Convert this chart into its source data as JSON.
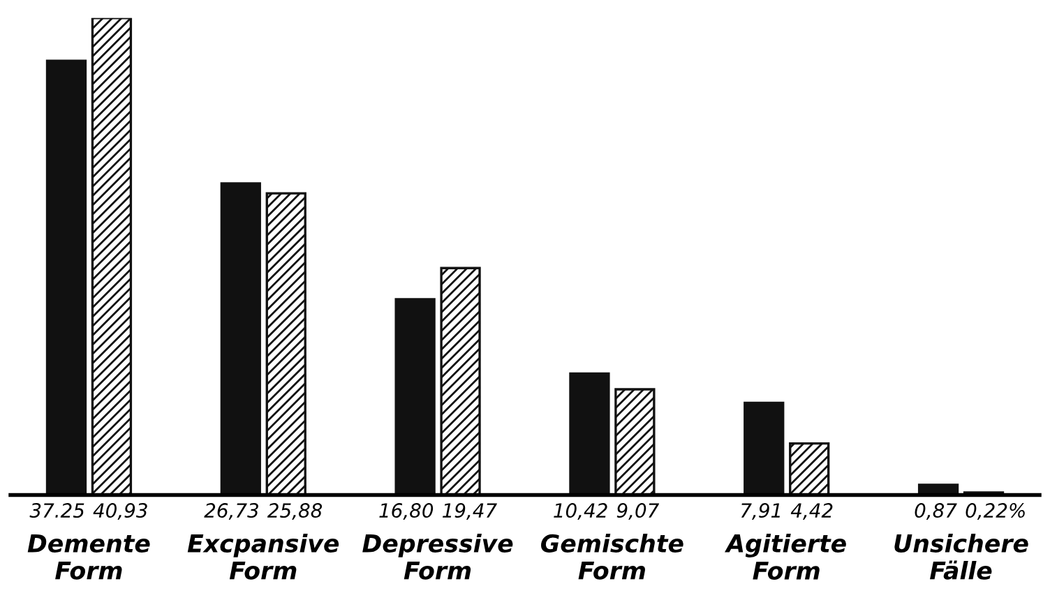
{
  "chart_data": {
    "type": "bar",
    "categories": [
      "Demente\nForm",
      "Excpansive\nForm",
      "Depressive\nForm",
      "Gemischte\nForm",
      "Agitierte\nForm",
      "Unsichere\nFälle"
    ],
    "series": [
      {
        "color": "#111111",
        "values": [
          37.25,
          26.73,
          16.8,
          10.42,
          7.91,
          0.87
        ],
        "value_labels": [
          "37.25",
          "26,73",
          "16,80",
          "10,42",
          "7,91",
          "0,87"
        ]
      },
      {
        "color": "#111111",
        "values": [
          40.93,
          25.88,
          19.47,
          9.07,
          4.42,
          0.22
        ],
        "value_labels": [
          "40,93",
          "25,88",
          "19,47",
          "9,07",
          "4,42",
          "0,22%"
        ]
      }
    ],
    "grid": false,
    "legend": false
  }
}
